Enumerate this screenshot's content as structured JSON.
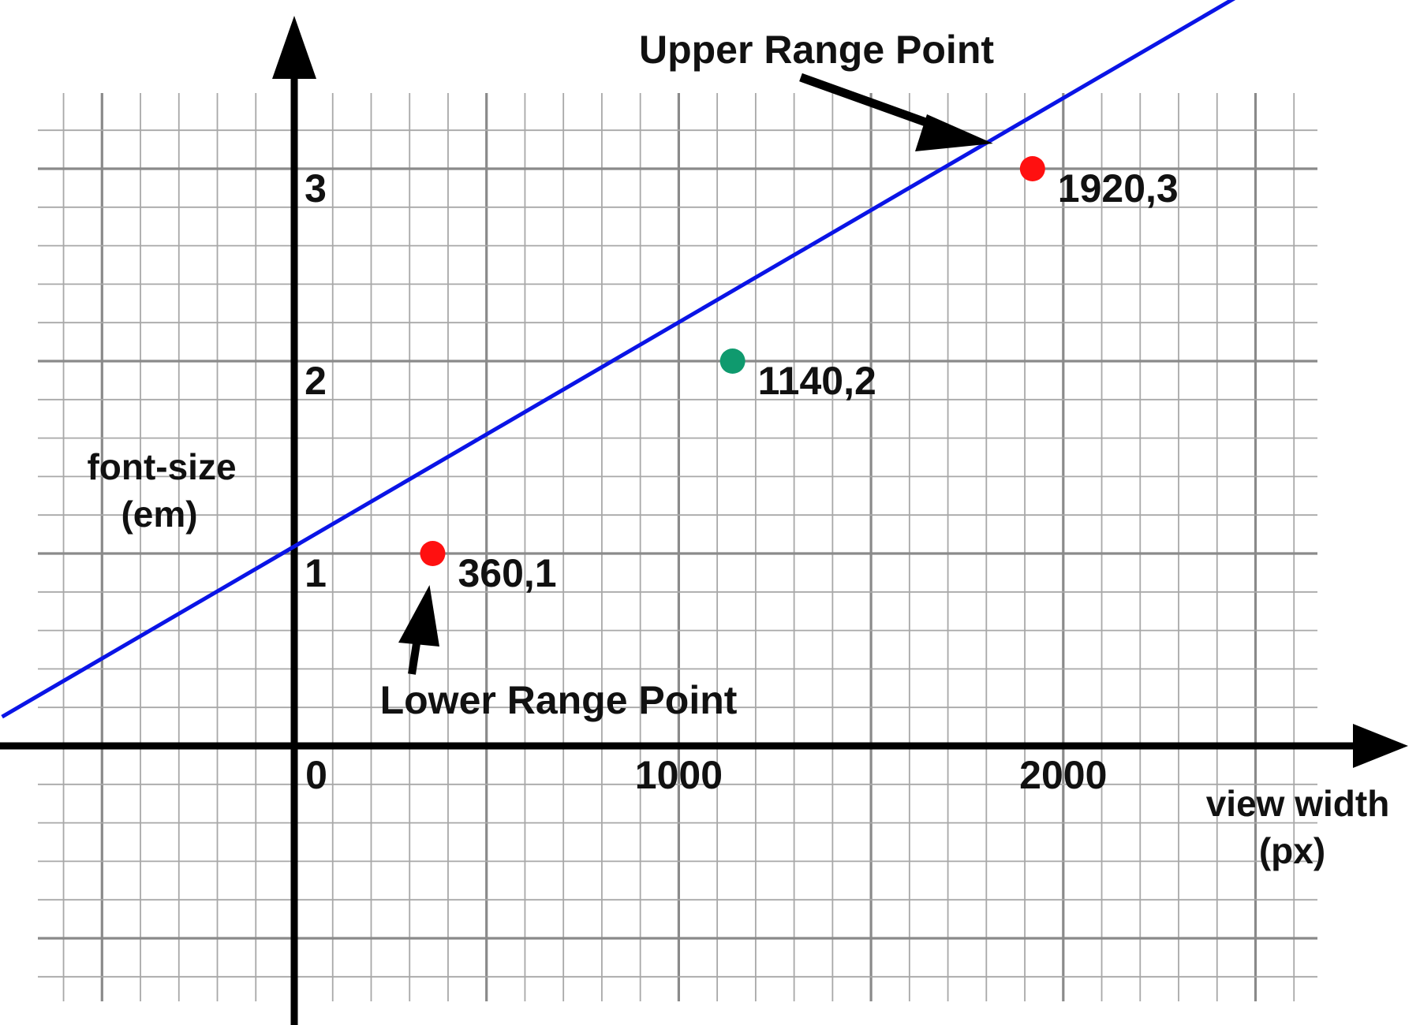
{
  "chart_data": {
    "type": "line",
    "title": "",
    "xlabel": [
      "view width",
      "(px)"
    ],
    "ylabel": [
      "font-size",
      "(em)"
    ],
    "xlim": [
      -760,
      2660
    ],
    "ylim": [
      -1.35,
      3.95
    ],
    "grid": true,
    "x_ticks": [
      {
        "value": 0,
        "label": "0"
      },
      {
        "value": 1000,
        "label": "1000"
      },
      {
        "value": 2000,
        "label": "2000"
      }
    ],
    "y_ticks": [
      {
        "value": 1,
        "label": "1"
      },
      {
        "value": 2,
        "label": "2"
      },
      {
        "value": 3,
        "label": "3"
      }
    ],
    "series": [
      {
        "color": "#0a14e6",
        "x": [
          -760,
          2660
        ],
        "y": [
          0.1513,
          4.1359
        ]
      }
    ],
    "points": [
      {
        "x": 360,
        "y": 1,
        "label": "360,1",
        "color": "#ff1010"
      },
      {
        "x": 1140,
        "y": 2,
        "label": "1140,2",
        "color": "#0f9a6e"
      },
      {
        "x": 1920,
        "y": 3,
        "label": "1920,3",
        "color": "#ff1010"
      }
    ],
    "annotations": [
      {
        "text": "Upper Range Point",
        "target": 2
      },
      {
        "text": "Lower Range Point",
        "target": 0
      }
    ]
  }
}
